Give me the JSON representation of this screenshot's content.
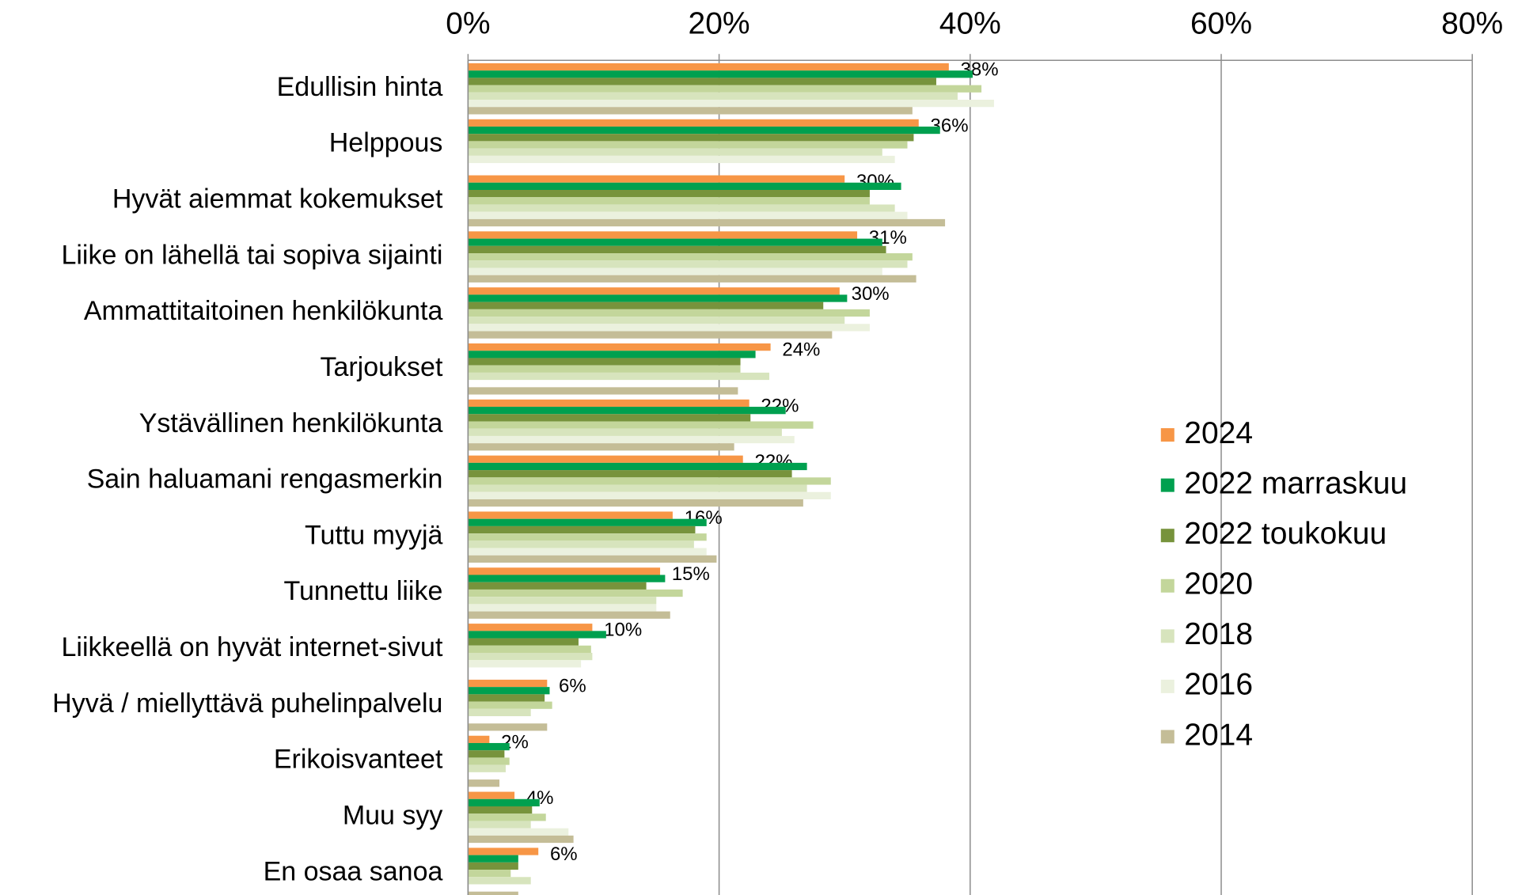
{
  "chart_data": {
    "type": "bar",
    "orientation": "horizontal",
    "categories": [
      "Edullisin hinta",
      "Helppous",
      "Hyvät aiemmat kokemukset",
      "Liike on lähellä tai sopiva sijainti",
      "Ammattitaitoinen henkilökunta",
      "Tarjoukset",
      "Ystävällinen henkilökunta",
      "Sain haluamani rengasmerkin",
      "Tuttu myyjä",
      "Tunnettu liike",
      "Liikkeellä on hyvät internet-sivut",
      "Hyvä / miellyttävä puhelinpalvelu",
      "Erikoisvanteet",
      "Muu syy",
      "En osaa sanoa"
    ],
    "series": [
      {
        "name": "2024",
        "color": "#f79646",
        "values": [
          38.3,
          35.9,
          30.0,
          31.0,
          29.6,
          24.1,
          22.4,
          21.9,
          16.3,
          15.3,
          9.9,
          6.3,
          1.7,
          3.7,
          5.6
        ],
        "value_labels": [
          "38%",
          "36%",
          "30%",
          "31%",
          "30%",
          "24%",
          "22%",
          "22%",
          "16%",
          "15%",
          "10%",
          "6%",
          "2%",
          "4%",
          "6%"
        ]
      },
      {
        "name": "2022 marraskuu",
        "color": "#00a04f",
        "values": [
          40.2,
          37.6,
          34.5,
          33.0,
          30.2,
          22.9,
          25.3,
          27.0,
          19.0,
          15.7,
          11.0,
          6.5,
          3.3,
          5.7,
          4.0
        ]
      },
      {
        "name": "2022 toukokuu",
        "color": "#77933c",
        "values": [
          37.3,
          35.5,
          32.0,
          33.3,
          28.3,
          21.7,
          22.5,
          25.8,
          18.1,
          14.2,
          8.8,
          6.1,
          2.9,
          5.1,
          4.0
        ]
      },
      {
        "name": "2020",
        "color": "#c3d69b",
        "values": [
          40.9,
          35.0,
          32.0,
          35.4,
          32.0,
          21.7,
          27.5,
          28.9,
          19.0,
          17.1,
          9.8,
          6.7,
          3.3,
          6.2,
          3.4
        ]
      },
      {
        "name": "2018",
        "color": "#d7e4bd",
        "values": [
          39.0,
          33.0,
          34.0,
          35.0,
          30.0,
          24.0,
          25.0,
          27.0,
          18.0,
          15.0,
          9.9,
          5.0,
          3.0,
          5.0,
          5.0
        ]
      },
      {
        "name": "2016",
        "color": "#ebf1de",
        "values": [
          41.9,
          34.0,
          35.0,
          33.0,
          32.0,
          null,
          26.0,
          28.9,
          19.0,
          15.0,
          9.0,
          null,
          null,
          8.0,
          null
        ]
      },
      {
        "name": "2014",
        "color": "#c4bd97",
        "values": [
          35.4,
          null,
          38.0,
          35.7,
          29.0,
          21.5,
          21.2,
          26.7,
          19.8,
          16.1,
          null,
          6.3,
          2.5,
          8.4,
          4.0
        ]
      }
    ],
    "xlim": [
      0,
      80
    ],
    "xticks": [
      {
        "value": 0,
        "label": "0%"
      },
      {
        "value": 20,
        "label": "20%"
      },
      {
        "value": 40,
        "label": "40%"
      },
      {
        "value": 60,
        "label": "60%"
      },
      {
        "value": 80,
        "label": "80%"
      }
    ],
    "grid": true,
    "legend": "right"
  }
}
